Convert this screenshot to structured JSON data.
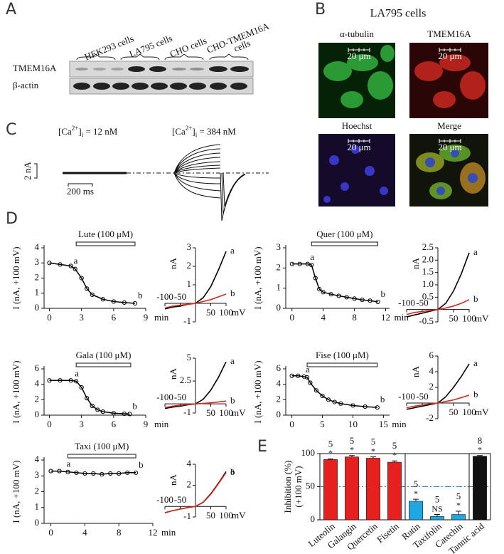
{
  "panel_a": {
    "label": "A",
    "groups": [
      [
        "HEK293 cells"
      ],
      [
        "LA795 cells"
      ],
      [
        "CHO cells"
      ],
      [
        "CHO-TMEM16A",
        "cells"
      ]
    ],
    "rows": [
      "TMEM16A",
      "β-actin"
    ]
  },
  "panel_b": {
    "label": "B",
    "title": "LA795 cells",
    "images": [
      "α-tubulin",
      "TMEM16A",
      "Hoechst",
      "Merge"
    ],
    "scale_bar": "20 μm"
  },
  "panel_c": {
    "label": "C",
    "conditions": [
      {
        "pre": "[Ca",
        "sup": "2+",
        "mid": "]",
        "sub": "i",
        "post": " = 12 nM"
      },
      {
        "pre": "[Ca",
        "sup": "2+",
        "mid": "]",
        "sub": "i",
        "post": " = 384 nM"
      }
    ],
    "current_scale": "2 nA",
    "time_scale": "200 ms"
  },
  "panel_d": {
    "label": "D"
  },
  "panel_e": {
    "label": "E"
  },
  "chart_data": [
    {
      "type": "line",
      "ylabel": "I (nA, +100 mV)",
      "xunit": "min",
      "drug": "Lute (100 μM)",
      "drug_span": [
        2.5,
        8
      ],
      "x": [
        0,
        1,
        2,
        2.4,
        3,
        3.5,
        4,
        5,
        6,
        7,
        8
      ],
      "values": [
        3.0,
        2.9,
        2.8,
        2.6,
        2.0,
        1.3,
        0.9,
        0.6,
        0.45,
        0.38,
        0.33
      ],
      "color": "#000000",
      "xlim": [
        -0.5,
        9
      ],
      "xticks": [
        0,
        3,
        6,
        9
      ],
      "ylim": [
        0,
        4
      ],
      "yticks": [
        0,
        1,
        2,
        3,
        4
      ],
      "annotations": [
        {
          "text": "a",
          "x": 2.4
        },
        {
          "text": "b",
          "x": 8
        }
      ]
    },
    {
      "type": "line",
      "axes_through_origin": true,
      "ylabel": "nA",
      "xunit": "mV",
      "x": [
        -100,
        -75,
        -50,
        -25,
        0,
        25,
        50,
        75,
        100
      ],
      "series": [
        {
          "name": "a",
          "color": "#000000",
          "values": [
            -0.3,
            -0.2,
            -0.15,
            -0.05,
            0,
            0.3,
            0.9,
            1.8,
            2.8
          ]
        },
        {
          "name": "b",
          "color": "#d42a1e",
          "values": [
            -0.25,
            -0.15,
            -0.1,
            -0.05,
            0,
            0.1,
            0.2,
            0.35,
            0.5
          ]
        }
      ],
      "xlim": [
        -100,
        100
      ],
      "xticks": [
        -100,
        -50,
        50,
        100
      ],
      "ylim": [
        -1,
        3
      ],
      "yticks": [
        -1,
        1,
        2,
        3
      ]
    },
    {
      "type": "line",
      "ylabel": "I (nA, +100 mV)",
      "xunit": "min",
      "drug": "Quer (100 μM)",
      "drug_span": [
        2.5,
        11
      ],
      "x": [
        0,
        1,
        2,
        2.5,
        3,
        3.5,
        4,
        5,
        6,
        7,
        8,
        9,
        10,
        11
      ],
      "values": [
        2.2,
        2.2,
        2.2,
        2.15,
        1.5,
        0.95,
        0.8,
        0.7,
        0.62,
        0.55,
        0.48,
        0.42,
        0.38,
        0.32
      ],
      "color": "#000000",
      "xlim": [
        -0.8,
        12.5
      ],
      "xticks": [
        0,
        4,
        8,
        12
      ],
      "ylim": [
        0,
        3
      ],
      "yticks": [
        0,
        1,
        2,
        3
      ],
      "annotations": [
        {
          "text": "a",
          "x": 2.5
        },
        {
          "text": "b",
          "x": 11
        }
      ]
    },
    {
      "type": "line",
      "axes_through_origin": true,
      "ylabel": "nA",
      "xunit": "mV",
      "x": [
        -100,
        -75,
        -50,
        -25,
        0,
        25,
        50,
        75,
        100
      ],
      "series": [
        {
          "name": "a",
          "color": "#000000",
          "values": [
            -0.3,
            -0.22,
            -0.15,
            -0.07,
            0,
            0.25,
            0.75,
            1.45,
            2.3
          ]
        },
        {
          "name": "b",
          "color": "#d42a1e",
          "values": [
            -0.2,
            -0.12,
            -0.08,
            -0.04,
            0,
            0.06,
            0.14,
            0.25,
            0.4
          ]
        }
      ],
      "xlim": [
        -100,
        100
      ],
      "xticks": [
        -100,
        -50,
        50,
        100
      ],
      "ylim": [
        -0.5,
        2.5
      ],
      "yticks": [
        -0.5,
        0.5,
        {
          "value": 1,
          "label": "1.0"
        },
        1.5,
        {
          "value": 2,
          "label": "2.0"
        },
        2.5
      ]
    },
    {
      "type": "line",
      "ylabel": "I (nA, +100 mV)",
      "xunit": "min",
      "drug": "Gala (100 μM)",
      "drug_span": [
        2.5,
        7.6
      ],
      "x": [
        0,
        1,
        2,
        2.5,
        3,
        3.5,
        4,
        4.5,
        5,
        6,
        7,
        7.5
      ],
      "values": [
        4.5,
        4.5,
        4.5,
        4.4,
        3.6,
        2.2,
        1.2,
        0.7,
        0.45,
        0.25,
        0.18,
        0.15
      ],
      "color": "#000000",
      "xlim": [
        -0.5,
        9
      ],
      "xticks": [
        0,
        3,
        6,
        9
      ],
      "ylim": [
        0,
        6
      ],
      "yticks": [
        0,
        2,
        4,
        6
      ],
      "annotations": [
        {
          "text": "a",
          "x": 2.5
        },
        {
          "text": "b",
          "x": 7.5
        }
      ]
    },
    {
      "type": "line",
      "axes_through_origin": true,
      "ylabel": "nA",
      "xunit": "mV",
      "x": [
        -100,
        -75,
        -50,
        -25,
        0,
        25,
        50,
        75,
        100
      ],
      "series": [
        {
          "name": "a",
          "color": "#000000",
          "values": [
            -0.5,
            -0.35,
            -0.25,
            -0.1,
            0,
            0.5,
            1.5,
            2.9,
            4.6
          ]
        },
        {
          "name": "b",
          "color": "#d42a1e",
          "values": [
            -0.4,
            -0.25,
            -0.15,
            -0.07,
            0,
            0.05,
            0.12,
            0.2,
            0.3
          ]
        }
      ],
      "xlim": [
        -100,
        100
      ],
      "xticks": [
        -100,
        -50,
        50,
        100
      ],
      "ylim": [
        -1,
        5
      ],
      "yticks": [
        -1,
        2.5,
        5
      ]
    },
    {
      "type": "line",
      "ylabel": "I (nA, +100 mV)",
      "xunit": "min",
      "drug": "Fise (100 μM)",
      "drug_span": [
        2.5,
        14
      ],
      "x": [
        0,
        1,
        2,
        2.5,
        3,
        4,
        5,
        6,
        7,
        8,
        10,
        12,
        14
      ],
      "values": [
        5.1,
        5.1,
        5.0,
        4.9,
        4.2,
        3.2,
        2.5,
        2.0,
        1.7,
        1.5,
        1.25,
        1.1,
        1.0
      ],
      "color": "#000000",
      "xlim": [
        -1,
        16
      ],
      "xticks": [
        0,
        5,
        10,
        15
      ],
      "ylim": [
        0,
        6
      ],
      "yticks": [
        0,
        2,
        4,
        6
      ],
      "annotations": [
        {
          "text": "a",
          "x": 2.5
        },
        {
          "text": "b",
          "x": 14
        }
      ]
    },
    {
      "type": "line",
      "axes_through_origin": true,
      "ylabel": "nA",
      "xunit": "mV",
      "x": [
        -100,
        -75,
        -50,
        -25,
        0,
        25,
        50,
        75,
        100
      ],
      "series": [
        {
          "name": "a",
          "color": "#000000",
          "values": [
            -0.8,
            -0.6,
            -0.4,
            -0.2,
            0,
            0.8,
            2.0,
            3.4,
            5.0
          ]
        },
        {
          "name": "b",
          "color": "#d42a1e",
          "values": [
            -0.6,
            -0.4,
            -0.25,
            -0.1,
            0,
            0.2,
            0.4,
            0.7,
            1.0
          ]
        }
      ],
      "xlim": [
        -100,
        100
      ],
      "xticks": [
        -100,
        -50,
        50,
        100
      ],
      "ylim": [
        -2,
        6
      ],
      "yticks": [
        -2,
        2,
        4,
        6
      ]
    },
    {
      "type": "line",
      "ylabel": "I (nA, +100 mV)",
      "xunit": "min",
      "drug": "Taxi (100 μM)",
      "drug_span": [
        2,
        10
      ],
      "x": [
        0,
        1,
        2,
        3,
        4,
        5,
        6,
        7,
        8,
        9,
        10
      ],
      "values": [
        3.3,
        3.3,
        3.25,
        3.2,
        3.15,
        3.15,
        3.1,
        3.15,
        3.15,
        3.2,
        3.2
      ],
      "color": "#000000",
      "xlim": [
        -0.8,
        12
      ],
      "xticks": [
        0,
        4,
        8,
        12
      ],
      "ylim": [
        0,
        4
      ],
      "yticks": [
        0,
        1,
        2,
        3,
        4
      ],
      "annotations": [
        {
          "text": "a",
          "x": 2
        },
        {
          "text": "b",
          "x": 10
        }
      ]
    },
    {
      "type": "line",
      "axes_through_origin": true,
      "ylabel": "nA",
      "xunit": "mV",
      "x": [
        -100,
        -75,
        -50,
        -25,
        0,
        25,
        50,
        75,
        100
      ],
      "series": [
        {
          "name": "a",
          "color": "#000000",
          "values": [
            -0.6,
            -0.4,
            -0.25,
            -0.1,
            0,
            0.4,
            1.2,
            2.2,
            3.3
          ]
        },
        {
          "name": "b",
          "color": "#d42a1e",
          "values": [
            -0.6,
            -0.4,
            -0.25,
            -0.1,
            0,
            0.38,
            1.15,
            2.15,
            3.2
          ]
        }
      ],
      "xlim": [
        -100,
        100
      ],
      "xticks": [
        -100,
        -50,
        50,
        100
      ],
      "ylim": [
        -1,
        4
      ],
      "yticks": [
        -1,
        2,
        4
      ]
    },
    {
      "type": "bar",
      "ylabel": [
        "Inhibition (%)",
        "(+100 mV)"
      ],
      "categories": [
        "Luteolin",
        "Galangin",
        "Quercetin",
        "Fisetin",
        "Rutin",
        "Taxifolin",
        "Catechin",
        "Tannic acid"
      ],
      "values": [
        91,
        95,
        93,
        87,
        28,
        5,
        8,
        96
      ],
      "errors": [
        1,
        2,
        2,
        2,
        3,
        3,
        5,
        1
      ],
      "colors": [
        "#e5201e",
        "#e5201e",
        "#e5201e",
        "#e5201e",
        "#1ea7e1",
        "#1ea7e1",
        "#1ea7e1",
        "#111111"
      ],
      "n": [
        5,
        5,
        5,
        5,
        5,
        5,
        5,
        8
      ],
      "significance": [
        "*",
        "*",
        "*",
        "*",
        "*",
        "NS",
        "*",
        "*"
      ],
      "ylim": [
        0,
        100
      ],
      "yticks": [
        0,
        50,
        100
      ],
      "reference_line": 50
    }
  ]
}
